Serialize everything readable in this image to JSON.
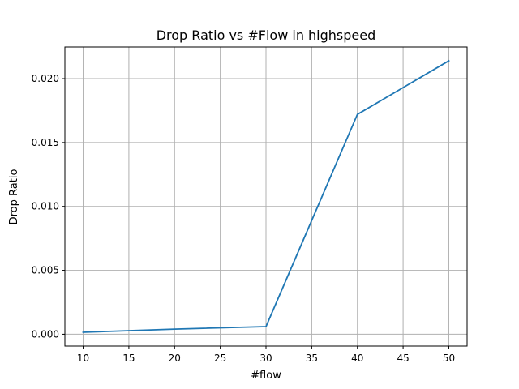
{
  "chart_data": {
    "type": "line",
    "title": "Drop Ratio vs #Flow in highspeed",
    "xlabel": "#flow",
    "ylabel": "Drop Ratio",
    "x": [
      10,
      20,
      30,
      40,
      50
    ],
    "series": [
      {
        "values": [
          0.00015,
          0.0004,
          0.0006,
          0.0172,
          0.0214
        ],
        "color": "#1f77b4"
      }
    ],
    "xlim": [
      8,
      52
    ],
    "ylim": [
      -0.000925,
      0.022475
    ],
    "xticks": [
      10,
      15,
      20,
      25,
      30,
      35,
      40,
      45,
      50
    ],
    "xtick_labels": [
      "10",
      "15",
      "20",
      "25",
      "30",
      "35",
      "40",
      "45",
      "50"
    ],
    "yticks": [
      0.0,
      0.005,
      0.01,
      0.015,
      0.02
    ],
    "ytick_labels": [
      "0.000",
      "0.005",
      "0.010",
      "0.015",
      "0.020"
    ],
    "grid": true,
    "grid_color": "#b0b0b0"
  }
}
